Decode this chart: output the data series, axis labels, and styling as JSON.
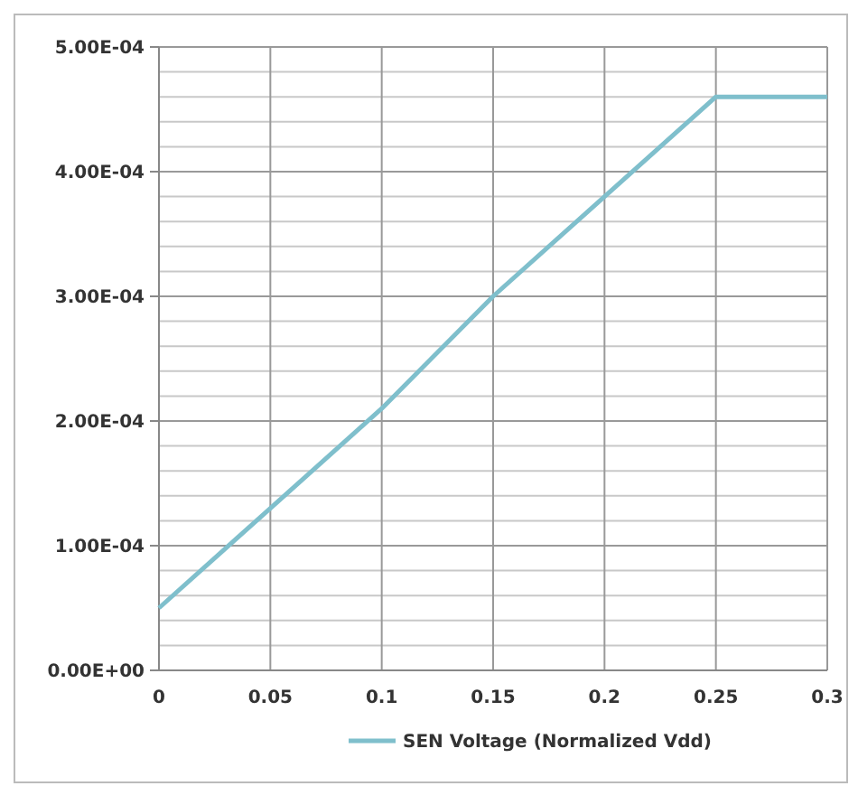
{
  "chart_data": {
    "type": "line",
    "x": [
      0,
      0.05,
      0.1,
      0.15,
      0.2,
      0.25,
      0.3
    ],
    "series": [
      {
        "name": "SEN Voltage (Normalized Vdd)",
        "color": "#7fbfcc",
        "values": [
          5e-05,
          0.00013,
          0.00021,
          0.0003,
          0.00038,
          0.00046,
          0.00046
        ]
      }
    ],
    "xlim": [
      0,
      0.3
    ],
    "xticks": [
      0,
      0.05,
      0.1,
      0.15,
      0.2,
      0.25,
      0.3
    ],
    "ylim": [
      0,
      0.0005
    ],
    "yticks": [
      {
        "value": 0,
        "label": "0.00E+00"
      },
      {
        "value": 2e-05,
        "label": null
      },
      {
        "value": 4e-05,
        "label": null
      },
      {
        "value": 6e-05,
        "label": null
      },
      {
        "value": 8e-05,
        "label": null
      },
      {
        "value": 0.0001,
        "label": "1.00E-04"
      },
      {
        "value": 0.00012,
        "label": null
      },
      {
        "value": 0.00014,
        "label": null
      },
      {
        "value": 0.00016,
        "label": null
      },
      {
        "value": 0.00018,
        "label": null
      },
      {
        "value": 0.0002,
        "label": "2.00E-04"
      },
      {
        "value": 0.00022,
        "label": null
      },
      {
        "value": 0.00024,
        "label": null
      },
      {
        "value": 0.00026,
        "label": null
      },
      {
        "value": 0.00028,
        "label": null
      },
      {
        "value": 0.0003,
        "label": "3.00E-04"
      },
      {
        "value": 0.00032,
        "label": null
      },
      {
        "value": 0.00034,
        "label": null
      },
      {
        "value": 0.00036,
        "label": null
      },
      {
        "value": 0.00038,
        "label": null
      },
      {
        "value": 0.0004,
        "label": "4.00E-04"
      },
      {
        "value": 0.00042,
        "label": null
      },
      {
        "value": 0.00044,
        "label": null
      },
      {
        "value": 0.00046,
        "label": null
      },
      {
        "value": 0.00048,
        "label": null
      },
      {
        "value": 0.0005,
        "label": "5.00E-04"
      }
    ],
    "grid": true,
    "legend": "bottom",
    "marker": "none",
    "line_style": "solid"
  }
}
